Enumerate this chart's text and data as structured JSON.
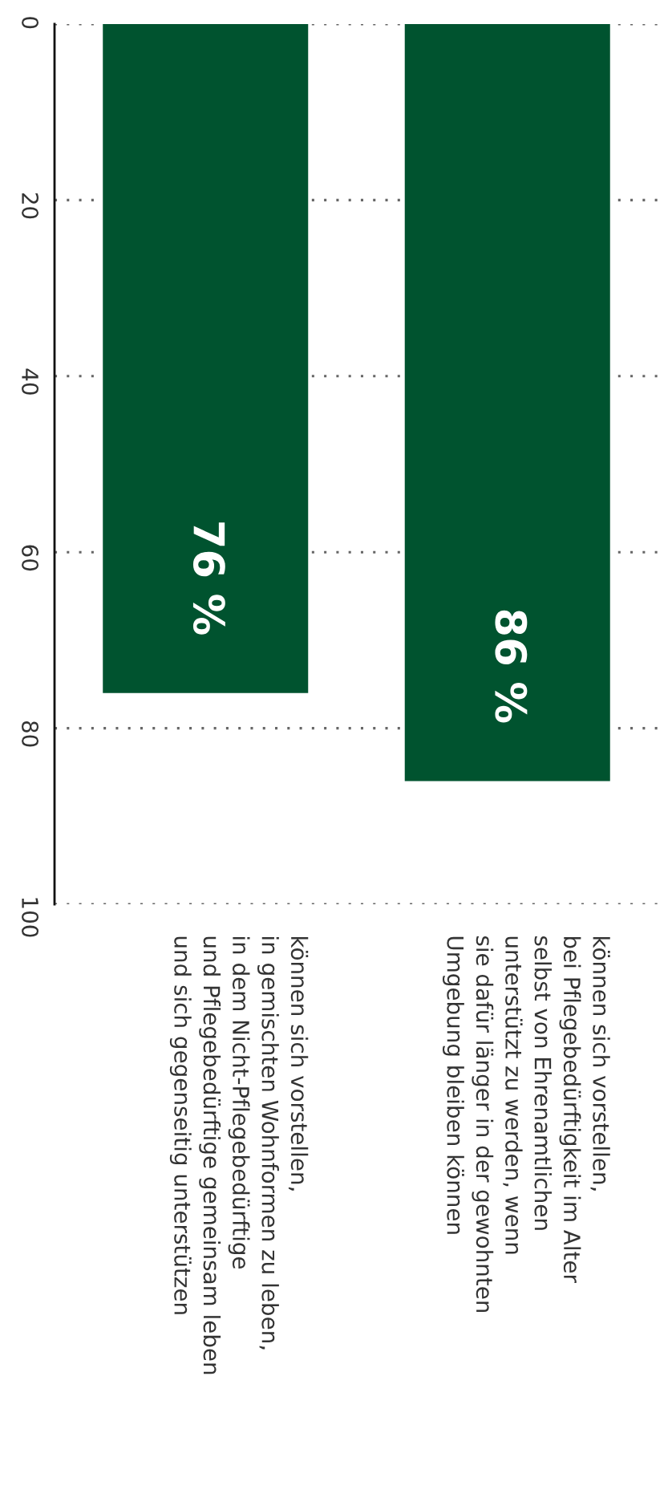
{
  "chart_data": {
    "type": "bar",
    "categories": [
      "können sich vorstellen,\nin gemischten Wohnformen zu leben,\nin dem Nicht-Pflegebedürftige\nund Pflegebedürftige gemeinsam leben\nund sich gegenseitig unterstützen",
      "können sich vorstellen,\nbei Pflegebedürftigkeit im Alter\nselbst von Ehrenamtlichen\nunterstützt zu werden, wenn\nsie dafür länger in der gewohnten\nUmgebung bleiben können"
    ],
    "values": [
      76,
      86
    ],
    "color": "#00532f",
    "value_labels": [
      "76 %",
      "86 %"
    ],
    "ylim": [
      100,
      0
    ],
    "yticks": [
      0,
      20,
      40,
      60,
      80,
      100
    ],
    "grid": "y",
    "legend": false
  }
}
